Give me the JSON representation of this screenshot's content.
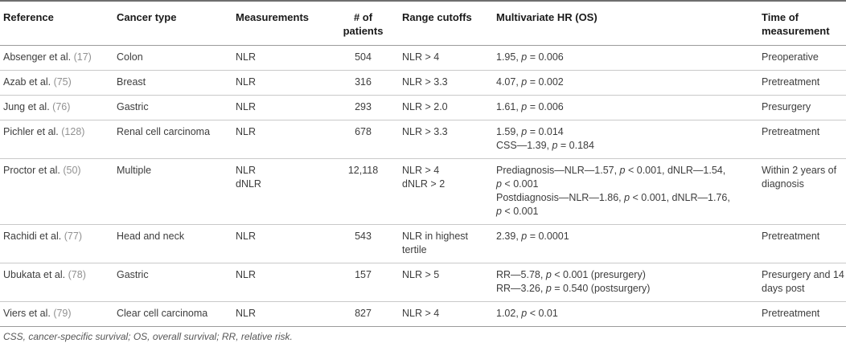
{
  "table": {
    "headers": {
      "reference": "Reference",
      "cancer_type": "Cancer type",
      "measurements": "Measurements",
      "patients": "# of patients",
      "range_cutoffs": "Range cutoffs",
      "multivariate_hr": "Multivariate HR (OS)",
      "time": "Time of measurement"
    },
    "rows": [
      {
        "reference": "Absenger et al.",
        "cite": "(17)",
        "cancer_type": "Colon",
        "measurements": [
          "NLR"
        ],
        "patients": "504",
        "range_cutoffs": [
          "NLR > 4"
        ],
        "hr": [
          "1.95, p = 0.006"
        ],
        "time": "Preoperative"
      },
      {
        "reference": "Azab et al.",
        "cite": "(75)",
        "cancer_type": "Breast",
        "measurements": [
          "NLR"
        ],
        "patients": "316",
        "range_cutoffs": [
          "NLR > 3.3"
        ],
        "hr": [
          "4.07, p = 0.002"
        ],
        "time": "Pretreatment"
      },
      {
        "reference": "Jung et al.",
        "cite": "(76)",
        "cancer_type": "Gastric",
        "measurements": [
          "NLR"
        ],
        "patients": "293",
        "range_cutoffs": [
          "NLR > 2.0"
        ],
        "hr": [
          "1.61, p = 0.006"
        ],
        "time": "Presurgery"
      },
      {
        "reference": "Pichler et al.",
        "cite": "(128)",
        "cancer_type": "Renal cell carcinoma",
        "measurements": [
          "NLR"
        ],
        "patients": "678",
        "range_cutoffs": [
          "NLR > 3.3"
        ],
        "hr": [
          "1.59, p = 0.014",
          "CSS—1.39, p = 0.184"
        ],
        "time": "Pretreatment"
      },
      {
        "reference": "Proctor et al.",
        "cite": "(50)",
        "cancer_type": "Multiple",
        "measurements": [
          "NLR",
          "dNLR"
        ],
        "patients": "12,118",
        "range_cutoffs": [
          "NLR > 4",
          "dNLR > 2"
        ],
        "hr": [
          "Prediagnosis—NLR—1.57, p < 0.001, dNLR—1.54, p < 0.001",
          "Postdiagnosis—NLR—1.86, p < 0.001, dNLR—1.76, p < 0.001"
        ],
        "time": "Within 2 years of diagnosis"
      },
      {
        "reference": "Rachidi et al.",
        "cite": "(77)",
        "cancer_type": "Head and neck",
        "measurements": [
          "NLR"
        ],
        "patients": "543",
        "range_cutoffs": [
          "NLR in highest tertile"
        ],
        "hr": [
          "2.39, p = 0.0001"
        ],
        "time": "Pretreatment"
      },
      {
        "reference": "Ubukata et al.",
        "cite": "(78)",
        "cancer_type": "Gastric",
        "measurements": [
          "NLR"
        ],
        "patients": "157",
        "range_cutoffs": [
          "NLR > 5"
        ],
        "hr": [
          "RR—5.78, p < 0.001 (presurgery)",
          "RR—3.26, p = 0.540 (postsurgery)"
        ],
        "time": "Presurgery and 14 days post"
      },
      {
        "reference": "Viers et al.",
        "cite": "(79)",
        "cancer_type": "Clear cell carcinoma",
        "measurements": [
          "NLR"
        ],
        "patients": "827",
        "range_cutoffs": [
          "NLR > 4"
        ],
        "hr": [
          "1.02, p < 0.01"
        ],
        "time": "Pretreatment"
      }
    ],
    "footnote": "CSS, cancer-specific survival; OS, overall survival; RR, relative risk."
  },
  "colors": {
    "text": "#3d3d3d",
    "header_text": "#1a1a1a",
    "citation": "#919191",
    "footnote_text": "#565656",
    "rule_strong": "#6e6e6e",
    "rule_medium": "#9b9b9b",
    "rule_light": "#c9c9c9"
  }
}
